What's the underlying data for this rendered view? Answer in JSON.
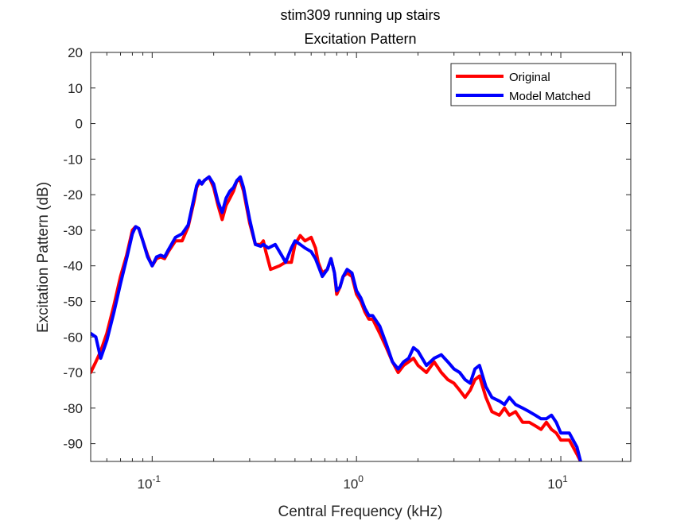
{
  "chart_data": {
    "type": "line",
    "title": [
      "stim309 running up stairs",
      "Excitation Pattern"
    ],
    "xlabel": "Central Frequency (kHz)",
    "ylabel": "Excitation Pattern (dB)",
    "xscale": "log",
    "xlim": [
      0.05,
      22
    ],
    "ylim": [
      -95,
      20
    ],
    "yticks": [
      20,
      10,
      0,
      -10,
      -20,
      -30,
      -40,
      -50,
      -60,
      -70,
      -80,
      -90
    ],
    "xticks": [
      {
        "value": 0.1,
        "base": "10",
        "exp": "-1"
      },
      {
        "value": 1,
        "base": "10",
        "exp": "0"
      },
      {
        "value": 10,
        "base": "10",
        "exp": "1"
      }
    ],
    "legend": {
      "placement": "top-right"
    },
    "series": [
      {
        "name": "Original",
        "color": "#ff0000",
        "points": [
          [
            0.05,
            -70.0
          ],
          [
            0.053,
            -67
          ],
          [
            0.056,
            -64
          ],
          [
            0.06,
            -59
          ],
          [
            0.065,
            -51
          ],
          [
            0.07,
            -43
          ],
          [
            0.075,
            -37
          ],
          [
            0.08,
            -30
          ],
          [
            0.083,
            -29
          ],
          [
            0.086,
            -29.5
          ],
          [
            0.09,
            -33
          ],
          [
            0.095,
            -37
          ],
          [
            0.1,
            -40
          ],
          [
            0.105,
            -38
          ],
          [
            0.11,
            -37.5
          ],
          [
            0.115,
            -38
          ],
          [
            0.12,
            -36
          ],
          [
            0.13,
            -33
          ],
          [
            0.14,
            -33
          ],
          [
            0.15,
            -29
          ],
          [
            0.16,
            -22
          ],
          [
            0.165,
            -18
          ],
          [
            0.17,
            -16.5
          ],
          [
            0.175,
            -17
          ],
          [
            0.18,
            -16
          ],
          [
            0.19,
            -15
          ],
          [
            0.2,
            -18
          ],
          [
            0.21,
            -23
          ],
          [
            0.22,
            -27
          ],
          [
            0.23,
            -23
          ],
          [
            0.24,
            -21
          ],
          [
            0.25,
            -19
          ],
          [
            0.26,
            -16
          ],
          [
            0.27,
            -16
          ],
          [
            0.28,
            -19
          ],
          [
            0.3,
            -28
          ],
          [
            0.32,
            -34
          ],
          [
            0.34,
            -34
          ],
          [
            0.35,
            -33
          ],
          [
            0.36,
            -36
          ],
          [
            0.38,
            -41
          ],
          [
            0.4,
            -40.5
          ],
          [
            0.42,
            -40
          ],
          [
            0.45,
            -39
          ],
          [
            0.48,
            -39
          ],
          [
            0.5,
            -34
          ],
          [
            0.53,
            -31.5
          ],
          [
            0.56,
            -33
          ],
          [
            0.6,
            -32
          ],
          [
            0.63,
            -35
          ],
          [
            0.65,
            -39
          ],
          [
            0.68,
            -42
          ],
          [
            0.72,
            -41
          ],
          [
            0.75,
            -38
          ],
          [
            0.78,
            -42
          ],
          [
            0.8,
            -48
          ],
          [
            0.83,
            -46
          ],
          [
            0.86,
            -43
          ],
          [
            0.9,
            -42
          ],
          [
            0.95,
            -43
          ],
          [
            1.0,
            -48
          ],
          [
            1.05,
            -50
          ],
          [
            1.1,
            -53
          ],
          [
            1.15,
            -55
          ],
          [
            1.2,
            -55
          ],
          [
            1.3,
            -59
          ],
          [
            1.4,
            -63
          ],
          [
            1.5,
            -67
          ],
          [
            1.6,
            -70
          ],
          [
            1.7,
            -68
          ],
          [
            1.8,
            -67
          ],
          [
            1.9,
            -66
          ],
          [
            2.0,
            -68
          ],
          [
            2.2,
            -70
          ],
          [
            2.4,
            -67
          ],
          [
            2.6,
            -70
          ],
          [
            2.8,
            -72
          ],
          [
            3.0,
            -73
          ],
          [
            3.2,
            -75
          ],
          [
            3.4,
            -77
          ],
          [
            3.6,
            -75
          ],
          [
            3.8,
            -72
          ],
          [
            4.0,
            -71
          ],
          [
            4.3,
            -77
          ],
          [
            4.6,
            -81
          ],
          [
            5.0,
            -82
          ],
          [
            5.3,
            -80
          ],
          [
            5.6,
            -82
          ],
          [
            6.0,
            -81
          ],
          [
            6.5,
            -84
          ],
          [
            7.0,
            -84
          ],
          [
            7.5,
            -85
          ],
          [
            8.0,
            -86
          ],
          [
            8.5,
            -84
          ],
          [
            9.0,
            -86
          ],
          [
            9.5,
            -87
          ],
          [
            10.0,
            -89
          ],
          [
            11.0,
            -89
          ],
          [
            12.0,
            -93
          ],
          [
            12.5,
            -95
          ]
        ]
      },
      {
        "name": "Model Matched",
        "color": "#0000ff",
        "points": [
          [
            0.05,
            -59.0
          ],
          [
            0.053,
            -60
          ],
          [
            0.056,
            -66
          ],
          [
            0.06,
            -61
          ],
          [
            0.065,
            -53
          ],
          [
            0.07,
            -45
          ],
          [
            0.075,
            -38
          ],
          [
            0.08,
            -31
          ],
          [
            0.083,
            -29
          ],
          [
            0.086,
            -29.5
          ],
          [
            0.09,
            -33
          ],
          [
            0.095,
            -37.5
          ],
          [
            0.1,
            -40
          ],
          [
            0.105,
            -37.5
          ],
          [
            0.11,
            -37
          ],
          [
            0.115,
            -37.5
          ],
          [
            0.12,
            -35.5
          ],
          [
            0.13,
            -32
          ],
          [
            0.14,
            -31
          ],
          [
            0.15,
            -28.5
          ],
          [
            0.16,
            -21
          ],
          [
            0.165,
            -17.5
          ],
          [
            0.17,
            -16
          ],
          [
            0.175,
            -17
          ],
          [
            0.18,
            -16
          ],
          [
            0.19,
            -15
          ],
          [
            0.2,
            -17
          ],
          [
            0.21,
            -22
          ],
          [
            0.22,
            -25
          ],
          [
            0.23,
            -21
          ],
          [
            0.24,
            -19
          ],
          [
            0.25,
            -18
          ],
          [
            0.26,
            -16
          ],
          [
            0.27,
            -15
          ],
          [
            0.28,
            -18
          ],
          [
            0.3,
            -27
          ],
          [
            0.32,
            -34
          ],
          [
            0.34,
            -34.5
          ],
          [
            0.35,
            -34
          ],
          [
            0.37,
            -35
          ],
          [
            0.4,
            -34
          ],
          [
            0.43,
            -37
          ],
          [
            0.45,
            -39
          ],
          [
            0.48,
            -35
          ],
          [
            0.5,
            -33
          ],
          [
            0.53,
            -34
          ],
          [
            0.56,
            -35
          ],
          [
            0.6,
            -36
          ],
          [
            0.63,
            -38
          ],
          [
            0.65,
            -40
          ],
          [
            0.68,
            -43
          ],
          [
            0.72,
            -41
          ],
          [
            0.75,
            -38
          ],
          [
            0.78,
            -42
          ],
          [
            0.8,
            -47
          ],
          [
            0.83,
            -46
          ],
          [
            0.86,
            -43
          ],
          [
            0.9,
            -41
          ],
          [
            0.95,
            -42
          ],
          [
            1.0,
            -47
          ],
          [
            1.05,
            -49
          ],
          [
            1.1,
            -52
          ],
          [
            1.15,
            -54
          ],
          [
            1.2,
            -54
          ],
          [
            1.3,
            -57
          ],
          [
            1.4,
            -62
          ],
          [
            1.5,
            -67
          ],
          [
            1.6,
            -69
          ],
          [
            1.7,
            -67
          ],
          [
            1.8,
            -66
          ],
          [
            1.9,
            -63
          ],
          [
            2.0,
            -64
          ],
          [
            2.2,
            -68
          ],
          [
            2.4,
            -66
          ],
          [
            2.6,
            -65
          ],
          [
            2.8,
            -67
          ],
          [
            3.0,
            -69
          ],
          [
            3.2,
            -70
          ],
          [
            3.4,
            -72
          ],
          [
            3.6,
            -73
          ],
          [
            3.8,
            -69
          ],
          [
            4.0,
            -68
          ],
          [
            4.3,
            -74
          ],
          [
            4.6,
            -77
          ],
          [
            5.0,
            -78
          ],
          [
            5.3,
            -79
          ],
          [
            5.6,
            -77
          ],
          [
            6.0,
            -79
          ],
          [
            6.5,
            -80
          ],
          [
            7.0,
            -81
          ],
          [
            7.5,
            -82
          ],
          [
            8.0,
            -83
          ],
          [
            8.5,
            -83
          ],
          [
            9.0,
            -82
          ],
          [
            9.5,
            -84
          ],
          [
            10.0,
            -87
          ],
          [
            11.0,
            -87
          ],
          [
            12.0,
            -91
          ],
          [
            12.5,
            -95
          ]
        ]
      }
    ]
  }
}
